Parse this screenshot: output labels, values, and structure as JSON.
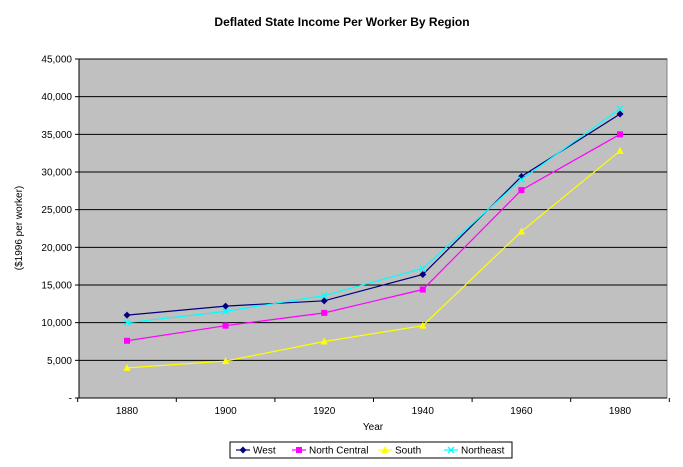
{
  "chart_data": {
    "type": "line",
    "title": "Deflated State Income Per Worker By Region",
    "xlabel": "Year",
    "ylabel": "($1996 per worker)",
    "x": [
      1880,
      1900,
      1920,
      1940,
      1960,
      1980
    ],
    "x_tick_labels": [
      "1880",
      "1900",
      "1920",
      "1940",
      "1960",
      "1980"
    ],
    "ylim": [
      0,
      45000
    ],
    "y_tick_labels": [
      "-",
      "5,000",
      "10,000",
      "15,000",
      "20,000",
      "25,000",
      "30,000",
      "35,000",
      "40,000",
      "45,000"
    ],
    "grid": "horizontal",
    "legend_position": "bottom",
    "plot_background": "#c0c0c0",
    "series": [
      {
        "name": "West",
        "color": "#000080",
        "marker": "diamond",
        "values": [
          11000,
          12200,
          12900,
          16400,
          29400,
          37700
        ]
      },
      {
        "name": "North Central",
        "color": "#ff00ff",
        "marker": "square",
        "values": [
          7600,
          9600,
          11300,
          14400,
          27600,
          35000
        ]
      },
      {
        "name": "South",
        "color": "#ffff00",
        "marker": "triangle",
        "values": [
          4000,
          4900,
          7500,
          9600,
          22100,
          32800
        ]
      },
      {
        "name": "Northeast",
        "color": "#00ffff",
        "marker": "x",
        "values": [
          10000,
          11500,
          13600,
          17200,
          29000,
          38400
        ]
      }
    ]
  }
}
